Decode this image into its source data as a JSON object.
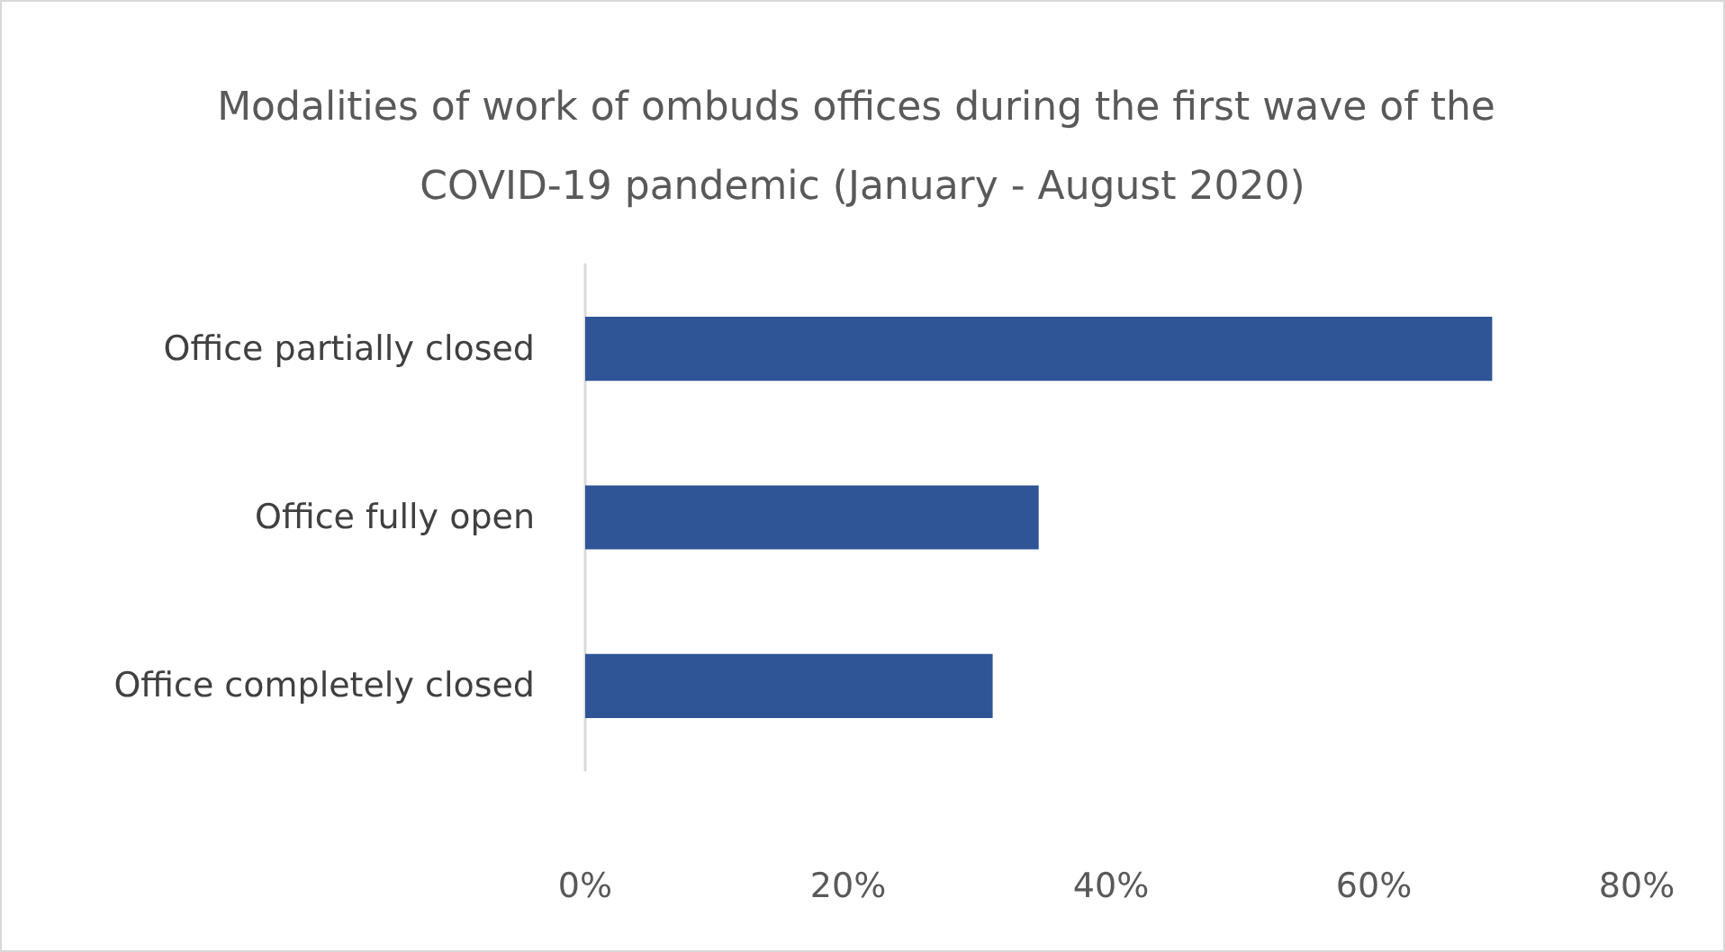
{
  "chart_data": {
    "type": "bar",
    "orientation": "horizontal",
    "title": "Modalities of work of ombuds offices during the first wave of the COVID-19 pandemic (January - August 2020)",
    "categories": [
      "Office partially closed",
      "Office fully open",
      "Office completely closed"
    ],
    "values": [
      69,
      34.5,
      31
    ],
    "color": "#2f5597",
    "xlim": [
      0,
      80
    ],
    "xticks": [
      {
        "value": 0,
        "label": "0%"
      },
      {
        "value": 20,
        "label": "20%"
      },
      {
        "value": 40,
        "label": "40%"
      },
      {
        "value": 60,
        "label": "60%"
      },
      {
        "value": 80,
        "label": "80%"
      }
    ],
    "grid": false
  }
}
